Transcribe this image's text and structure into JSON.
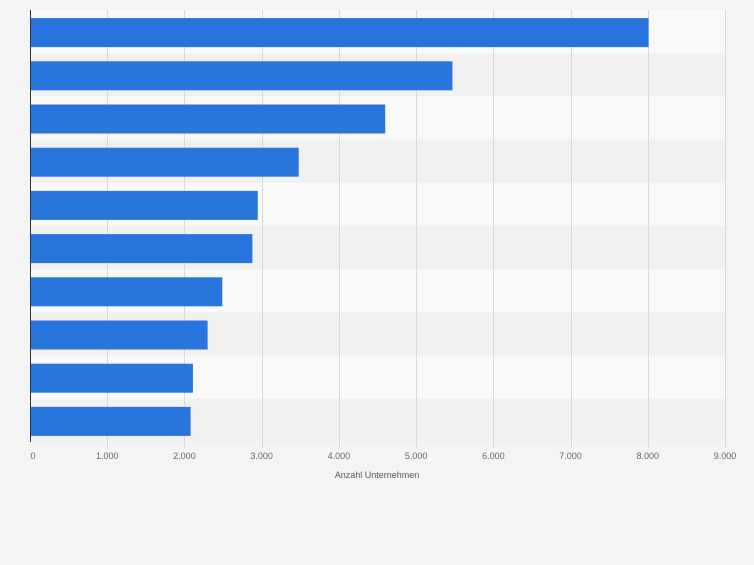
{
  "chart_data": {
    "type": "bar",
    "orientation": "horizontal",
    "categories": [
      "",
      "",
      "",
      "",
      "",
      "",
      "",
      "",
      "",
      ""
    ],
    "values": [
      8010,
      5470,
      4600,
      3480,
      2950,
      2880,
      2490,
      2300,
      2110,
      2080
    ],
    "xlabel": "Anzahl Unternehmen",
    "ylabel": "",
    "xlim": [
      0,
      9000
    ],
    "xticks": [
      0,
      1000,
      2000,
      3000,
      4000,
      5000,
      6000,
      7000,
      8000,
      9000
    ],
    "xtick_labels": [
      "0",
      "1.000",
      "2.000",
      "3.000",
      "4.000",
      "5.000",
      "6.000",
      "7.000",
      "8.000",
      "9.000"
    ],
    "grid": true,
    "legend": "none",
    "colors": {
      "bar": "#2876dd",
      "band_light": "#f9f9f9",
      "band_dark": "#f1f1f1",
      "gridline": "#d8d8d8",
      "axis": "#333333",
      "tick_text": "#666666",
      "background": "#f4f4f4"
    }
  }
}
